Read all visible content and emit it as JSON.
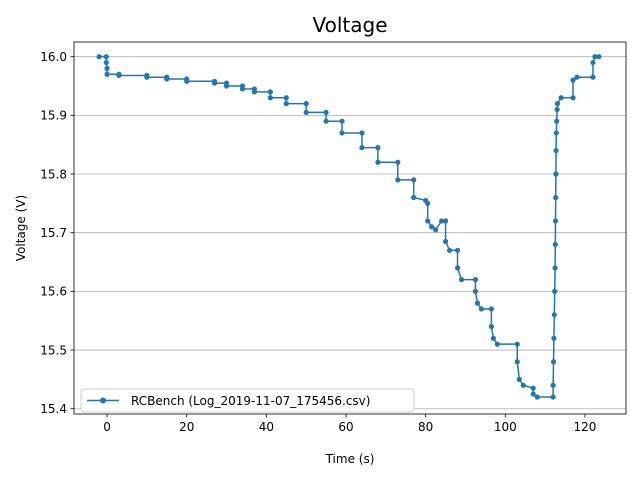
{
  "chart_data": {
    "type": "line",
    "title": "Voltage",
    "xlabel": "Time (s)",
    "ylabel": "Voltage (V)",
    "xlim": [
      -8.3,
      130.3
    ],
    "ylim": [
      15.391,
      16.025
    ],
    "x_ticks": [
      0,
      20,
      40,
      60,
      80,
      100,
      120
    ],
    "y_ticks": [
      15.4,
      15.5,
      15.6,
      15.7,
      15.8,
      15.9,
      16.0
    ],
    "x_tick_labels": [
      "0",
      "20",
      "40",
      "60",
      "80",
      "100",
      "120"
    ],
    "y_tick_labels": [
      "15.4",
      "15.5",
      "15.6",
      "15.7",
      "15.8",
      "15.9",
      "16.0"
    ],
    "grid": "horizontal",
    "legend": {
      "position": "lower-left",
      "entries": [
        "RCBench (Log_2019-11-07_175456.csv)"
      ]
    },
    "colors": {
      "series": "#1f77b4",
      "grid": "#b0b0b0",
      "axes": "#000000"
    },
    "series": [
      {
        "name": "RCBench (Log_2019-11-07_175456.csv)",
        "marker": "circle",
        "points": [
          [
            -2.0,
            16.0
          ],
          [
            -0.2,
            16.0
          ],
          [
            -0.2,
            15.99
          ],
          [
            0.0,
            15.98
          ],
          [
            0.0,
            15.97
          ],
          [
            3.0,
            15.97
          ],
          [
            3.0,
            15.968
          ],
          [
            10.0,
            15.968
          ],
          [
            10.0,
            15.965
          ],
          [
            15.0,
            15.965
          ],
          [
            15.0,
            15.962
          ],
          [
            20.0,
            15.962
          ],
          [
            20.0,
            15.958
          ],
          [
            27.0,
            15.958
          ],
          [
            27.0,
            15.955
          ],
          [
            30.0,
            15.955
          ],
          [
            30.0,
            15.95
          ],
          [
            34.0,
            15.95
          ],
          [
            34.0,
            15.945
          ],
          [
            37.0,
            15.945
          ],
          [
            37.0,
            15.94
          ],
          [
            41.0,
            15.94
          ],
          [
            41.0,
            15.93
          ],
          [
            45.0,
            15.93
          ],
          [
            45.0,
            15.92
          ],
          [
            50.0,
            15.92
          ],
          [
            50.0,
            15.905
          ],
          [
            55.0,
            15.905
          ],
          [
            55.0,
            15.89
          ],
          [
            59.0,
            15.89
          ],
          [
            59.0,
            15.87
          ],
          [
            64.0,
            15.87
          ],
          [
            64.0,
            15.845
          ],
          [
            68.0,
            15.845
          ],
          [
            68.0,
            15.82
          ],
          [
            73.0,
            15.82
          ],
          [
            73.0,
            15.79
          ],
          [
            77.0,
            15.79
          ],
          [
            77.0,
            15.76
          ],
          [
            80.0,
            15.755
          ],
          [
            80.5,
            15.75
          ],
          [
            80.5,
            15.72
          ],
          [
            81.5,
            15.71
          ],
          [
            82.5,
            15.705
          ],
          [
            84.0,
            15.72
          ],
          [
            85.0,
            15.72
          ],
          [
            85.0,
            15.685
          ],
          [
            86.0,
            15.67
          ],
          [
            88.0,
            15.67
          ],
          [
            88.0,
            15.64
          ],
          [
            89.0,
            15.62
          ],
          [
            92.5,
            15.62
          ],
          [
            92.5,
            15.6
          ],
          [
            93.0,
            15.58
          ],
          [
            94.0,
            15.57
          ],
          [
            96.5,
            15.57
          ],
          [
            96.5,
            15.54
          ],
          [
            97.0,
            15.52
          ],
          [
            98.0,
            15.51
          ],
          [
            103.0,
            15.51
          ],
          [
            103.0,
            15.48
          ],
          [
            103.5,
            15.45
          ],
          [
            104.5,
            15.44
          ],
          [
            107.0,
            15.435
          ],
          [
            107.0,
            15.425
          ],
          [
            108.0,
            15.42
          ],
          [
            112.0,
            15.42
          ],
          [
            112.0,
            15.44
          ],
          [
            112.1,
            15.48
          ],
          [
            112.2,
            15.52
          ],
          [
            112.3,
            15.56
          ],
          [
            112.4,
            15.6
          ],
          [
            112.5,
            15.64
          ],
          [
            112.55,
            15.68
          ],
          [
            112.6,
            15.72
          ],
          [
            112.65,
            15.76
          ],
          [
            112.7,
            15.8
          ],
          [
            112.75,
            15.84
          ],
          [
            112.8,
            15.87
          ],
          [
            112.9,
            15.89
          ],
          [
            113.0,
            15.91
          ],
          [
            113.1,
            15.92
          ],
          [
            114.0,
            15.93
          ],
          [
            117.0,
            15.93
          ],
          [
            117.0,
            15.96
          ],
          [
            118.0,
            15.965
          ],
          [
            122.0,
            15.965
          ],
          [
            122.0,
            15.99
          ],
          [
            122.5,
            16.0
          ],
          [
            123.5,
            16.0
          ]
        ]
      }
    ]
  }
}
